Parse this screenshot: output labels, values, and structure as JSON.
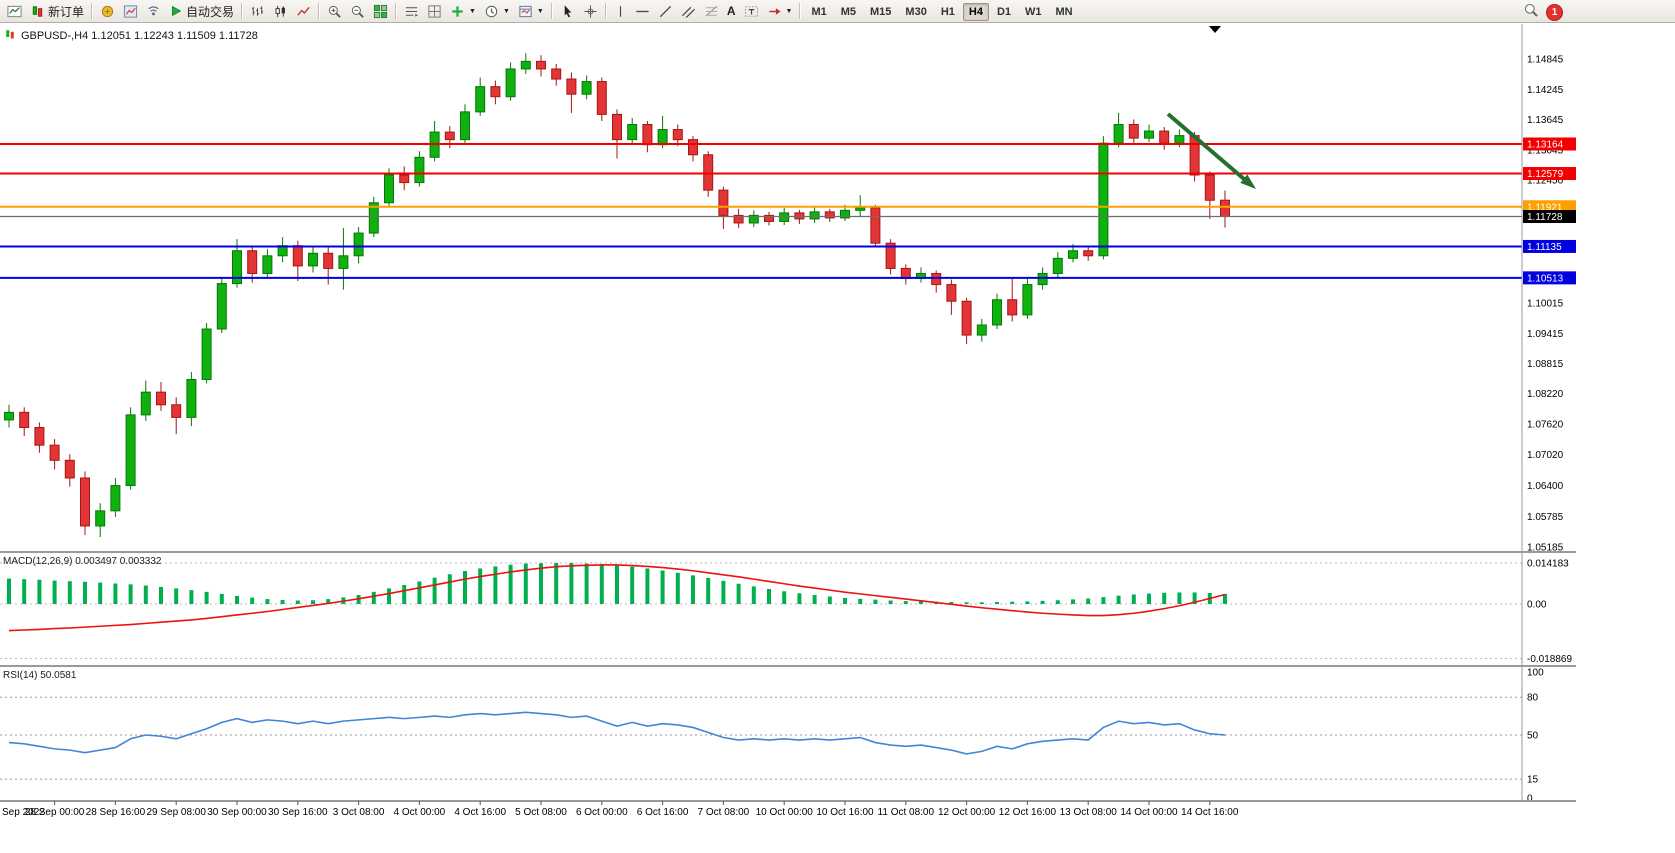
{
  "toolbar": {
    "new_order": "新订单",
    "autotrading": "自动交易",
    "text_tool": "A",
    "timeframes": [
      "M1",
      "M5",
      "M15",
      "M30",
      "H1",
      "H4",
      "D1",
      "W1",
      "MN"
    ],
    "active_timeframe": "H4",
    "notification_count": "1"
  },
  "chart": {
    "symbol_line": "GBPUSD-,H4  1.12051 1.12243 1.11509 1.11728",
    "macd_label": "MACD(12,26,9) 0.003497 0.003332",
    "rsi_label": "RSI(14) 50.0581"
  },
  "colors": {
    "up": "#0eb10e",
    "up_border": "#067806",
    "down": "#e23535",
    "down_border": "#a81414",
    "macd_hist": "#00b050",
    "macd_signal": "#ef1010",
    "rsi": "#3e86d8",
    "arrow": "#256f30",
    "axis_text": "#000000",
    "separator": "#9a9a9a"
  },
  "chart_data": [
    {
      "type": "candlestick",
      "title": "GBPUSD- H4",
      "last_candle_ohlc": [
        1.12051,
        1.12243,
        1.11509,
        1.11728
      ],
      "price_min": 1.0506,
      "price_max": 1.1552,
      "y_axis_ticks": [
        1.14845,
        1.14245,
        1.13645,
        1.13045,
        1.1245,
        1.10015,
        1.09415,
        1.08815,
        1.0822,
        1.0762,
        1.0702,
        1.064,
        1.05785,
        1.05185
      ],
      "horizontal_lines": [
        {
          "price": 1.13164,
          "color": "#f20000",
          "badge_bg": "#f20000",
          "role": "resistance"
        },
        {
          "price": 1.12579,
          "color": "#f20000",
          "badge_bg": "#f20000",
          "role": "resistance"
        },
        {
          "price": 1.11921,
          "color": "#ff9f00",
          "badge_bg": "#ff9f00",
          "role": "pivot"
        },
        {
          "price": 1.11728,
          "color": "#6e6e6e",
          "badge_bg": "#000000",
          "role": "bid"
        },
        {
          "price": 1.11135,
          "color": "#0000e0",
          "badge_bg": "#0000e0",
          "role": "support"
        },
        {
          "price": 1.10513,
          "color": "#0000e0",
          "badge_bg": "#0000e0",
          "role": "support"
        }
      ],
      "time_labels": [
        "Sep 2022",
        "28 Sep 00:00",
        "28 Sep 16:00",
        "29 Sep 08:00",
        "30 Sep 00:00",
        "30 Sep 16:00",
        "3 Oct 08:00",
        "4 Oct 00:00",
        "4 Oct 16:00",
        "5 Oct 08:00",
        "6 Oct 00:00",
        "6 Oct 16:00",
        "7 Oct 08:00",
        "10 Oct 00:00",
        "10 Oct 16:00",
        "11 Oct 08:00",
        "12 Oct 00:00",
        "12 Oct 16:00",
        "13 Oct 08:00",
        "14 Oct 00:00",
        "14 Oct 16:00"
      ],
      "candles": [
        [
          1.077,
          1.08,
          1.0755,
          1.0785
        ],
        [
          1.0785,
          1.0795,
          1.0738,
          1.0755
        ],
        [
          1.0755,
          1.0765,
          1.0705,
          1.072
        ],
        [
          1.072,
          1.0732,
          1.0672,
          1.069
        ],
        [
          1.069,
          1.0702,
          1.0638,
          1.0655
        ],
        [
          1.0655,
          1.0668,
          1.0542,
          1.056
        ],
        [
          1.056,
          1.0605,
          1.0538,
          1.059
        ],
        [
          1.059,
          1.0655,
          1.0578,
          1.064
        ],
        [
          1.064,
          1.0795,
          1.0632,
          1.078
        ],
        [
          1.078,
          1.0848,
          1.0768,
          1.0825
        ],
        [
          1.0825,
          1.0845,
          1.0788,
          1.08
        ],
        [
          1.08,
          1.0815,
          1.0742,
          1.0775
        ],
        [
          1.0775,
          1.0865,
          1.0758,
          1.085
        ],
        [
          1.085,
          1.0962,
          1.0842,
          1.095
        ],
        [
          1.095,
          1.1052,
          1.0942,
          1.104
        ],
        [
          1.104,
          1.1128,
          1.1032,
          1.1105
        ],
        [
          1.1105,
          1.1115,
          1.1042,
          1.106
        ],
        [
          1.106,
          1.1108,
          1.105,
          1.1095
        ],
        [
          1.1095,
          1.1132,
          1.1082,
          1.1115
        ],
        [
          1.1115,
          1.1125,
          1.1045,
          1.1075
        ],
        [
          1.1075,
          1.1114,
          1.1062,
          1.11
        ],
        [
          1.11,
          1.1112,
          1.1038,
          1.107
        ],
        [
          1.107,
          1.115,
          1.1028,
          1.1095
        ],
        [
          1.1095,
          1.1152,
          1.108,
          1.114
        ],
        [
          1.114,
          1.1212,
          1.1132,
          1.12
        ],
        [
          1.12,
          1.1268,
          1.1192,
          1.1255
        ],
        [
          1.1255,
          1.1272,
          1.1225,
          1.124
        ],
        [
          1.124,
          1.1302,
          1.1232,
          1.129
        ],
        [
          1.129,
          1.1362,
          1.1282,
          1.134
        ],
        [
          1.134,
          1.1352,
          1.1308,
          1.1325
        ],
        [
          1.1325,
          1.1395,
          1.1318,
          1.138
        ],
        [
          1.138,
          1.1448,
          1.1372,
          1.143
        ],
        [
          1.143,
          1.1442,
          1.1395,
          1.141
        ],
        [
          1.141,
          1.1478,
          1.1402,
          1.1465
        ],
        [
          1.1465,
          1.1496,
          1.1455,
          1.148
        ],
        [
          1.148,
          1.1492,
          1.145,
          1.1465
        ],
        [
          1.1465,
          1.1475,
          1.1432,
          1.1445
        ],
        [
          1.1445,
          1.1458,
          1.1378,
          1.1415
        ],
        [
          1.1415,
          1.1452,
          1.1405,
          1.144
        ],
        [
          1.144,
          1.1448,
          1.1362,
          1.1375
        ],
        [
          1.1375,
          1.1385,
          1.1288,
          1.1325
        ],
        [
          1.1325,
          1.1368,
          1.1315,
          1.1355
        ],
        [
          1.1355,
          1.1362,
          1.13,
          1.1315
        ],
        [
          1.1315,
          1.1372,
          1.1308,
          1.1345
        ],
        [
          1.1345,
          1.1355,
          1.1312,
          1.1325
        ],
        [
          1.1325,
          1.1332,
          1.1282,
          1.1295
        ],
        [
          1.1295,
          1.1302,
          1.1212,
          1.1225
        ],
        [
          1.1225,
          1.1232,
          1.1148,
          1.1175
        ],
        [
          1.1175,
          1.1188,
          1.115,
          1.116
        ],
        [
          1.116,
          1.1185,
          1.1152,
          1.1175
        ],
        [
          1.1175,
          1.1182,
          1.1155,
          1.1163
        ],
        [
          1.1163,
          1.119,
          1.1156,
          1.118
        ],
        [
          1.118,
          1.1186,
          1.1158,
          1.1168
        ],
        [
          1.1168,
          1.1192,
          1.116,
          1.1182
        ],
        [
          1.1182,
          1.1188,
          1.1162,
          1.117
        ],
        [
          1.117,
          1.1196,
          1.1164,
          1.1185
        ],
        [
          1.1185,
          1.1215,
          1.1172,
          1.119
        ],
        [
          1.119,
          1.1196,
          1.1112,
          1.112
        ],
        [
          1.112,
          1.1128,
          1.1058,
          1.107
        ],
        [
          1.107,
          1.1078,
          1.1038,
          1.105
        ],
        [
          1.105,
          1.1072,
          1.1042,
          1.106
        ],
        [
          1.106,
          1.1066,
          1.1022,
          1.1038
        ],
        [
          1.1038,
          1.1048,
          1.0978,
          1.1005
        ],
        [
          1.1005,
          1.1012,
          1.092,
          1.0938
        ],
        [
          1.0938,
          1.097,
          1.0925,
          1.0958
        ],
        [
          1.0958,
          1.102,
          1.095,
          1.1008
        ],
        [
          1.1008,
          1.1052,
          1.0965,
          1.0978
        ],
        [
          1.0978,
          1.105,
          1.097,
          1.1038
        ],
        [
          1.1038,
          1.1072,
          1.1028,
          1.106
        ],
        [
          1.106,
          1.1102,
          1.1052,
          1.109
        ],
        [
          1.109,
          1.1118,
          1.1082,
          1.1105
        ],
        [
          1.1105,
          1.1115,
          1.1085,
          1.1095
        ],
        [
          1.1095,
          1.1332,
          1.1088,
          1.1318
        ],
        [
          1.1318,
          1.1378,
          1.131,
          1.1355
        ],
        [
          1.1355,
          1.1365,
          1.1315,
          1.1328
        ],
        [
          1.1328,
          1.1355,
          1.132,
          1.1342
        ],
        [
          1.1342,
          1.135,
          1.1305,
          1.1318
        ],
        [
          1.1318,
          1.1345,
          1.131,
          1.1333
        ],
        [
          1.1333,
          1.134,
          1.1242,
          1.1255
        ],
        [
          1.1255,
          1.1262,
          1.1168,
          1.1205
        ],
        [
          1.12051,
          1.12243,
          1.11509,
          1.11728
        ]
      ]
    },
    {
      "type": "macd_histogram",
      "label": "MACD(12,26,9)",
      "value_main": 0.003497,
      "value_signal": 0.003332,
      "y_axis_ticks": [
        0.014183,
        0,
        -0.018869
      ],
      "histogram": [
        0.0088,
        0.0086,
        0.0084,
        0.0081,
        0.0079,
        0.0077,
        0.0074,
        0.0071,
        0.0068,
        0.0064,
        0.0059,
        0.0054,
        0.0048,
        0.0042,
        0.0035,
        0.0028,
        0.0022,
        0.0017,
        0.0014,
        0.0012,
        0.0013,
        0.0017,
        0.0023,
        0.0031,
        0.0042,
        0.0054,
        0.0066,
        0.0078,
        0.0091,
        0.0103,
        0.0114,
        0.0123,
        0.013,
        0.0136,
        0.014,
        0.0141,
        0.0142,
        0.0142,
        0.014,
        0.0138,
        0.0134,
        0.0129,
        0.0123,
        0.0116,
        0.0108,
        0.0099,
        0.009,
        0.008,
        0.007,
        0.0061,
        0.0052,
        0.0044,
        0.0037,
        0.0031,
        0.0026,
        0.0021,
        0.0018,
        0.0015,
        0.0012,
        0.001,
        0.0009,
        0.0008,
        0.0007,
        0.0006,
        0.0006,
        0.0007,
        0.0008,
        0.0009,
        0.0011,
        0.0013,
        0.0016,
        0.0019,
        0.0024,
        0.0029,
        0.0033,
        0.0036,
        0.0039,
        0.004,
        0.004,
        0.0038,
        0.0035
      ],
      "signal": [
        -0.0092,
        -0.009,
        -0.0088,
        -0.0085,
        -0.0083,
        -0.008,
        -0.0077,
        -0.0074,
        -0.0071,
        -0.0067,
        -0.0063,
        -0.0059,
        -0.0055,
        -0.005,
        -0.0044,
        -0.0038,
        -0.0032,
        -0.0026,
        -0.0019,
        -0.0012,
        -0.0005,
        0.0002,
        0.001,
        0.0018,
        0.0027,
        0.0036,
        0.0046,
        0.0056,
        0.0066,
        0.0076,
        0.0086,
        0.0095,
        0.0103,
        0.0111,
        0.0118,
        0.0124,
        0.0129,
        0.0132,
        0.0134,
        0.0135,
        0.0135,
        0.0133,
        0.013,
        0.0126,
        0.0121,
        0.0115,
        0.0108,
        0.0101,
        0.0094,
        0.0086,
        0.0078,
        0.007,
        0.0062,
        0.0055,
        0.0048,
        0.0041,
        0.0035,
        0.0029,
        0.0023,
        0.0017,
        0.0011,
        0.0005,
        -0.0001,
        -0.0007,
        -0.0013,
        -0.0018,
        -0.0023,
        -0.0028,
        -0.0032,
        -0.0035,
        -0.0038,
        -0.004,
        -0.004,
        -0.0037,
        -0.0032,
        -0.0025,
        -0.0016,
        -0.0006,
        0.0006,
        0.0019,
        0.0033
      ]
    },
    {
      "type": "rsi_line",
      "label": "RSI(14)",
      "value": 50.0581,
      "levels": [
        80,
        50,
        15
      ],
      "y_axis_ticks": [
        100,
        80,
        50,
        15,
        0
      ],
      "values": [
        44,
        43,
        41,
        39,
        38,
        36,
        38,
        40,
        47,
        50,
        49,
        47,
        51,
        55,
        60,
        63,
        60,
        62,
        61,
        59,
        61,
        59,
        61,
        62,
        63,
        64,
        63,
        64,
        65,
        64,
        66,
        67,
        66,
        67,
        68,
        67,
        66,
        64,
        65,
        61,
        57,
        60,
        57,
        59,
        58,
        56,
        52,
        48,
        46,
        47,
        46,
        47,
        46,
        47,
        46,
        47,
        48,
        44,
        42,
        41,
        42,
        40,
        38,
        35,
        37,
        41,
        39,
        43,
        45,
        46,
        47,
        46,
        56,
        61,
        59,
        60,
        58,
        59,
        54,
        51,
        50.0581
      ]
    }
  ]
}
